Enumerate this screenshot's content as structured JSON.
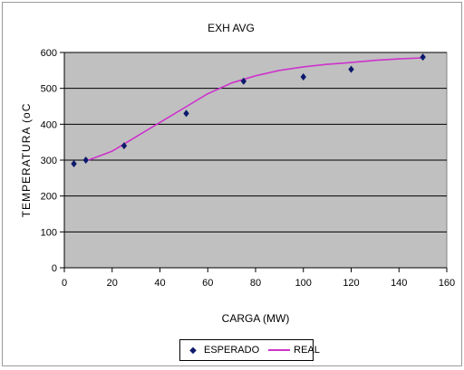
{
  "chart_data": {
    "type": "scatter",
    "title": "EXH AVG",
    "xlabel": "CARGA (MW)",
    "ylabel": "TEMPERATURA (oC",
    "xlim": [
      0,
      160
    ],
    "ylim": [
      0,
      600
    ],
    "xticks": [
      0,
      20,
      40,
      60,
      80,
      100,
      120,
      140,
      160
    ],
    "yticks": [
      0,
      100,
      200,
      300,
      400,
      500,
      600
    ],
    "grid": "horizontal",
    "legend_position": "bottom",
    "colors": {
      "plot_bg": "#c0c0c0",
      "marker": "#0d1a6b",
      "line": "#cc33cc"
    },
    "series": [
      {
        "name": "ESPERADO",
        "kind": "markers",
        "x": [
          4,
          9,
          25,
          51,
          75,
          100,
          120,
          150
        ],
        "y": [
          290,
          300,
          340,
          430,
          520,
          532,
          553,
          587
        ]
      },
      {
        "name": "REAL",
        "kind": "line",
        "x": [
          10,
          20,
          30,
          40,
          50,
          60,
          70,
          80,
          90,
          100,
          110,
          120,
          130,
          140,
          150
        ],
        "y": [
          300,
          325,
          365,
          405,
          445,
          485,
          515,
          535,
          550,
          560,
          567,
          572,
          578,
          582,
          585
        ]
      }
    ]
  }
}
